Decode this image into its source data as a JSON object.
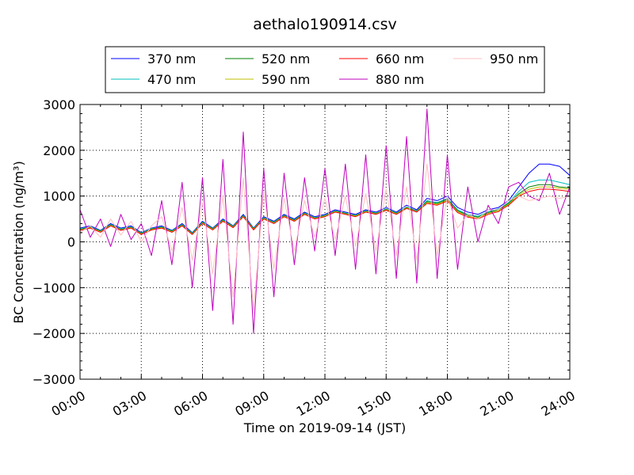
{
  "chart_data": {
    "type": "line",
    "title": "aethalo190914.csv",
    "xlabel": "Time on 2019-09-14 (JST)",
    "ylabel": "BC Concentration (ng/m³)",
    "xlim": [
      "00:00",
      "24:00"
    ],
    "ylim": [
      -3000,
      3000
    ],
    "x_ticks": [
      "00:00",
      "03:00",
      "06:00",
      "09:00",
      "12:00",
      "15:00",
      "18:00",
      "21:00",
      "24:00"
    ],
    "y_ticks": [
      -3000,
      -2000,
      -1000,
      0,
      1000,
      2000,
      3000
    ],
    "grid": true,
    "legend_position": "top",
    "x": [
      "00:00",
      "00:30",
      "01:00",
      "01:30",
      "02:00",
      "02:30",
      "03:00",
      "03:30",
      "04:00",
      "04:30",
      "05:00",
      "05:30",
      "06:00",
      "06:30",
      "07:00",
      "07:30",
      "08:00",
      "08:30",
      "09:00",
      "09:30",
      "10:00",
      "10:30",
      "11:00",
      "11:30",
      "12:00",
      "12:30",
      "13:00",
      "13:30",
      "14:00",
      "14:30",
      "15:00",
      "15:30",
      "16:00",
      "16:30",
      "17:00",
      "17:30",
      "18:00",
      "18:30",
      "19:00",
      "19:30",
      "20:00",
      "20:30",
      "21:00",
      "21:30",
      "22:00",
      "22:30",
      "23:00",
      "23:30",
      "24:00"
    ],
    "series": [
      {
        "name": "370 nm",
        "color": "#0000ff",
        "values": [
          300,
          350,
          250,
          400,
          300,
          350,
          200,
          300,
          350,
          250,
          400,
          200,
          450,
          300,
          500,
          350,
          600,
          300,
          550,
          450,
          600,
          500,
          650,
          550,
          600,
          700,
          650,
          600,
          700,
          650,
          750,
          650,
          800,
          700,
          950,
          900,
          1000,
          750,
          650,
          600,
          700,
          750,
          900,
          1200,
          1500,
          1700,
          1700,
          1650,
          1450
        ]
      },
      {
        "name": "470 nm",
        "color": "#00bfbf",
        "values": [
          280,
          330,
          240,
          380,
          280,
          330,
          190,
          290,
          330,
          240,
          380,
          190,
          430,
          290,
          480,
          340,
          580,
          290,
          530,
          430,
          580,
          480,
          630,
          530,
          580,
          680,
          630,
          580,
          680,
          630,
          720,
          630,
          760,
          680,
          900,
          860,
          950,
          700,
          600,
          560,
          660,
          720,
          860,
          1100,
          1300,
          1350,
          1350,
          1300,
          1250
        ]
      },
      {
        "name": "520 nm",
        "color": "#008000",
        "values": [
          270,
          320,
          230,
          370,
          270,
          320,
          180,
          280,
          320,
          230,
          370,
          180,
          420,
          280,
          470,
          330,
          570,
          280,
          520,
          420,
          570,
          470,
          620,
          520,
          570,
          670,
          620,
          570,
          670,
          620,
          710,
          620,
          750,
          670,
          880,
          840,
          930,
          680,
          580,
          540,
          640,
          700,
          840,
          1050,
          1200,
          1250,
          1250,
          1200,
          1180
        ]
      },
      {
        "name": "590 nm",
        "color": "#bfbf00",
        "values": [
          260,
          310,
          220,
          360,
          260,
          310,
          170,
          270,
          310,
          220,
          360,
          170,
          410,
          270,
          460,
          320,
          560,
          270,
          510,
          410,
          560,
          460,
          610,
          510,
          560,
          660,
          610,
          560,
          660,
          610,
          700,
          610,
          740,
          660,
          860,
          820,
          910,
          660,
          560,
          520,
          620,
          680,
          820,
          1020,
          1150,
          1200,
          1200,
          1170,
          1150
        ]
      },
      {
        "name": "660 nm",
        "color": "#ff0000",
        "values": [
          250,
          300,
          210,
          350,
          250,
          300,
          160,
          260,
          300,
          210,
          350,
          160,
          400,
          260,
          450,
          310,
          550,
          260,
          500,
          400,
          550,
          450,
          600,
          500,
          550,
          650,
          600,
          550,
          650,
          600,
          690,
          600,
          730,
          650,
          840,
          800,
          890,
          640,
          540,
          500,
          600,
          660,
          800,
          1000,
          1100,
          1150,
          1150,
          1130,
          1100
        ]
      },
      {
        "name": "880 nm",
        "color": "#bf00bf",
        "values": [
          700,
          100,
          500,
          -100,
          600,
          50,
          400,
          -300,
          900,
          -500,
          1300,
          -1000,
          1400,
          -1500,
          1800,
          -1800,
          2400,
          -2000,
          1600,
          -1200,
          1500,
          -500,
          1400,
          -200,
          1600,
          -300,
          1700,
          -600,
          1900,
          -700,
          2100,
          -800,
          2300,
          -900,
          2900,
          -800,
          1900,
          -600,
          1200,
          0,
          800,
          400,
          1200,
          1300,
          1000,
          900,
          1500,
          600,
          1200
        ]
      },
      {
        "name": "950 nm",
        "color": "#ffbfbf",
        "values": [
          200,
          350,
          100,
          500,
          150,
          450,
          0,
          350,
          550,
          -200,
          750,
          -400,
          850,
          -700,
          1000,
          -1200,
          1400,
          -1500,
          1100,
          -600,
          950,
          -200,
          900,
          100,
          950,
          50,
          1000,
          -100,
          1050,
          -200,
          1150,
          -300,
          1200,
          -400,
          1700,
          -300,
          1000,
          300,
          600,
          500,
          700,
          700,
          900,
          1000,
          900,
          950,
          1000,
          950,
          1000
        ]
      }
    ]
  }
}
